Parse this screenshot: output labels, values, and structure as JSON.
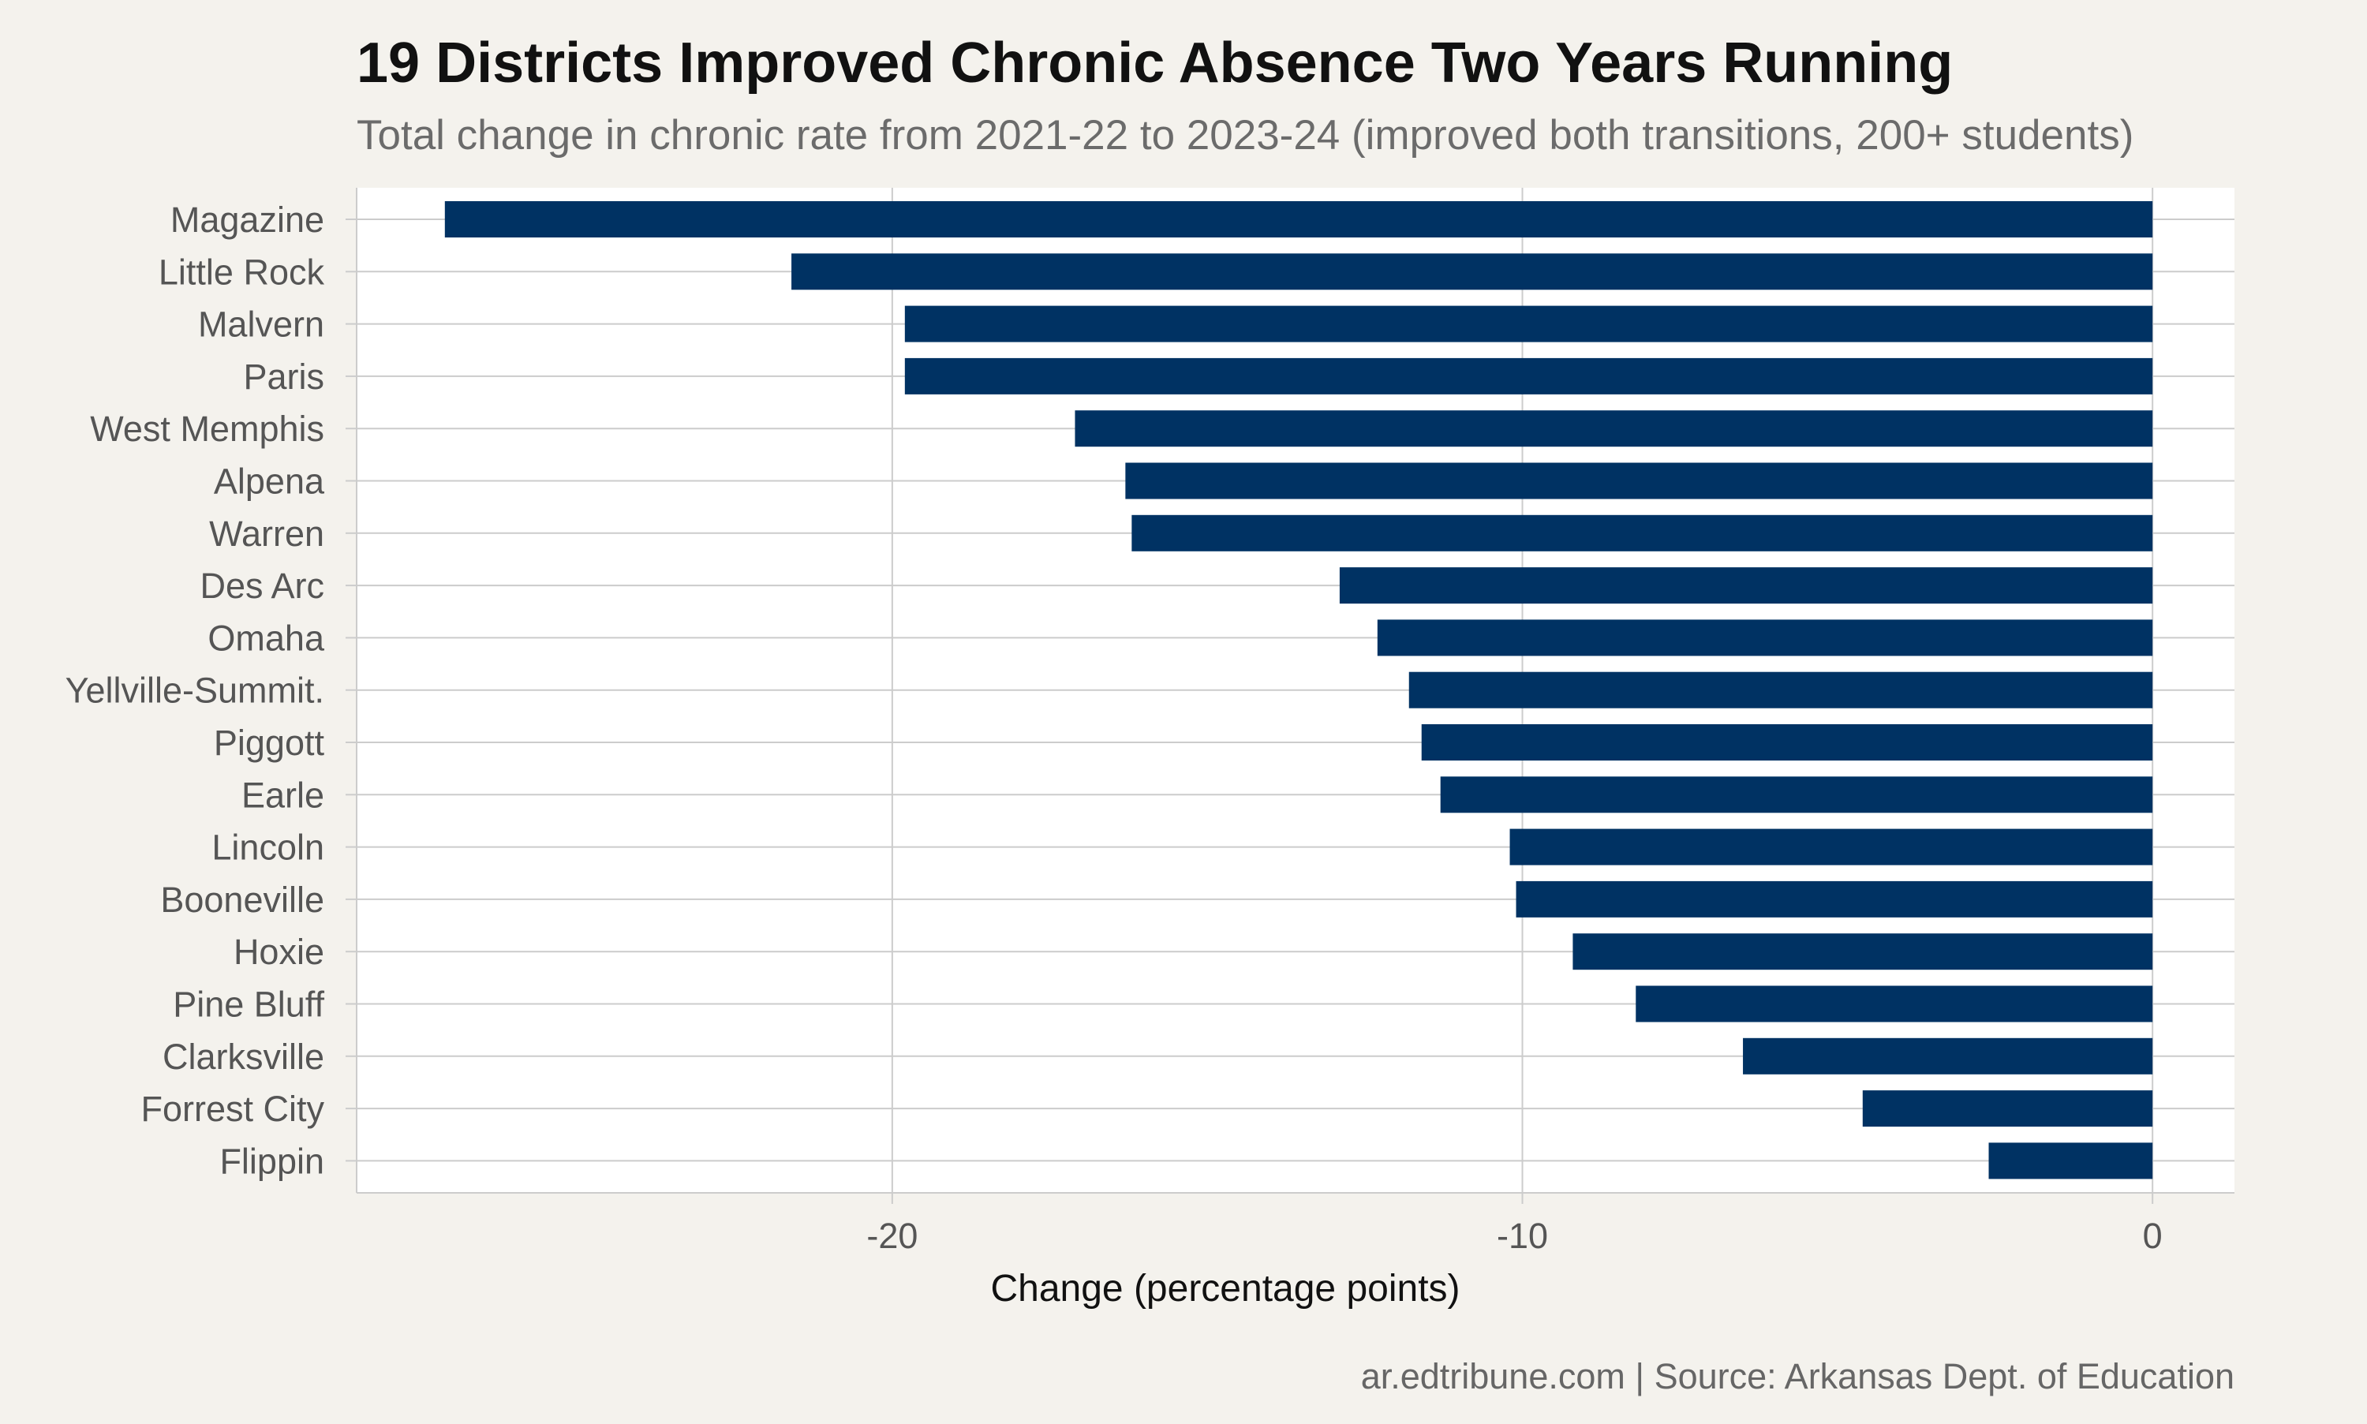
{
  "chart_data": {
    "type": "bar",
    "orientation": "horizontal",
    "title": "19 Districts Improved Chronic Absence Two Years Running",
    "subtitle": "Total change in chronic rate from 2021-22 to 2023-24 (improved both transitions, 200+ students)",
    "xlabel": "Change (percentage points)",
    "ylabel": "",
    "xlim": [
      -28.5,
      1.3
    ],
    "xticks": [
      -20,
      -10,
      0
    ],
    "grid": true,
    "legend": "none",
    "caption": "ar.edtribune.com | Source: Arkansas Dept. of Education",
    "categories": [
      "Magazine",
      "Little Rock",
      "Malvern",
      "Paris",
      "West Memphis",
      "Alpena",
      "Warren",
      "Des Arc",
      "Omaha",
      "Yellville-Summit.",
      "Piggott",
      "Earle",
      "Lincoln",
      "Booneville",
      "Hoxie",
      "Pine Bluff",
      "Clarksville",
      "Forrest City",
      "Flippin"
    ],
    "values": [
      -27.1,
      -21.6,
      -19.8,
      -19.8,
      -17.1,
      -16.3,
      -16.2,
      -12.9,
      -12.3,
      -11.8,
      -11.6,
      -11.3,
      -10.2,
      -10.1,
      -9.2,
      -8.2,
      -6.5,
      -4.6,
      -2.6
    ],
    "colors": {
      "bar": "#003263",
      "background": "#f4f2ed",
      "panel": "#ffffff",
      "grid": "#cccccc",
      "title": "#111111",
      "subtitle": "#6b6b6b",
      "axis_text": "#555555",
      "caption": "#666666"
    }
  }
}
